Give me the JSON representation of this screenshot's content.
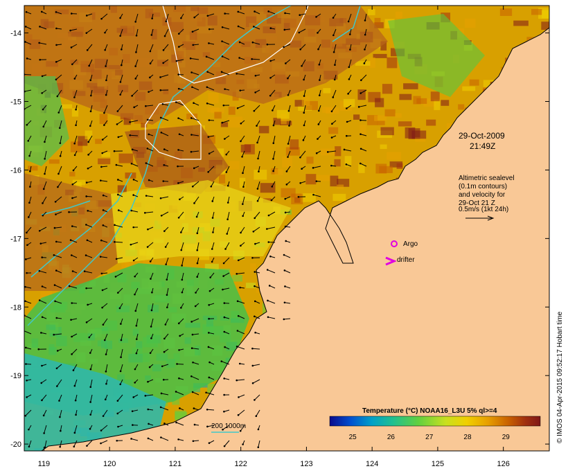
{
  "map": {
    "lon_range": [
      118.7,
      126.7
    ],
    "lat_range": [
      -20.1,
      -13.6
    ],
    "lon_ticks": [
      "119",
      "120",
      "121",
      "122",
      "123",
      "124",
      "125",
      "126"
    ],
    "lat_ticks": [
      "-14",
      "-15",
      "-16",
      "-17",
      "-18",
      "-19",
      "-20"
    ],
    "land_color": "#f9c896",
    "sst_palette": [
      "#0a0a8c",
      "#0050d0",
      "#00a0c8",
      "#20c090",
      "#60d040",
      "#c8e020",
      "#f0d000",
      "#e8a000",
      "#c86000",
      "#a03010",
      "#801818"
    ]
  },
  "annotations": {
    "date": "29-Oct-2009",
    "time": "21:49Z",
    "altimetry_lines": [
      "Altimetric sealevel",
      "(0.1m contours)",
      "and velocity for",
      "29-Oct 21 Z",
      "0.5m/s (1kt 24h)"
    ],
    "argo_label": "Argo",
    "drifter_label": "drifter",
    "isobath_label": "200  1000m",
    "credit": "© IMOS 04-Apr-2015 09:52:17 Hobart time"
  },
  "colorbar": {
    "title": "Temperature (°C) NOAA16_L3U 5% ql>=4",
    "ticks": [
      "25",
      "26",
      "27",
      "28",
      "29"
    ],
    "range": [
      24.4,
      29.9
    ]
  },
  "colors": {
    "argo": "#e000e0",
    "drifter": "#e000e0",
    "isobath": "#40c8c8",
    "sealevel_contour": "#ffffff"
  }
}
